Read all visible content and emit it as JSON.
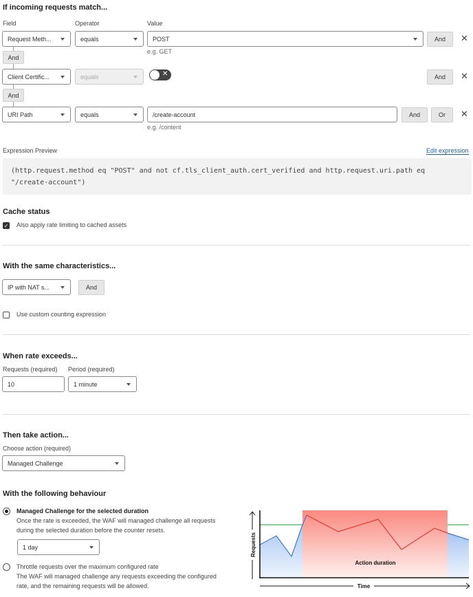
{
  "match": {
    "title": "If incoming requests match...",
    "field_label": "Field",
    "operator_label": "Operator",
    "value_label": "Value",
    "rows": [
      {
        "field": "Request Meth...",
        "operator": "equals",
        "value": "POST",
        "hint": "e.g. GET",
        "and": "And"
      },
      {
        "field": "Client Certific...",
        "operator": "equals",
        "toggle": false,
        "and": "And"
      },
      {
        "field": "URI Path",
        "operator": "equals",
        "value": "/create-account",
        "hint": "e.g. /content",
        "and": "And",
        "or": "Or"
      }
    ],
    "connectors": [
      "And",
      "And"
    ]
  },
  "expression": {
    "label": "Expression Preview",
    "edit": "Edit expression",
    "line1": "(http.request.method eq \"POST\" and not cf.tls_client_auth.cert_verified and http.request.uri.path eq",
    "line2": "\"/create-account\")"
  },
  "cache": {
    "title": "Cache status",
    "checkbox": "Also apply rate limiting to cached assets",
    "checked": true
  },
  "characteristics": {
    "title": "With the same characteristics...",
    "select": "IP with NAT s...",
    "and": "And",
    "custom": "Use custom counting expression",
    "custom_checked": false
  },
  "rate": {
    "title": "When rate exceeds...",
    "requests_label": "Requests (required)",
    "requests": "10",
    "period_label": "Period (required)",
    "period": "1 minute"
  },
  "action": {
    "title": "Then take action...",
    "choose_label": "Choose action (required)",
    "action": "Managed Challenge"
  },
  "behaviour": {
    "title": "With the following behaviour",
    "opt1": {
      "title": "Managed Challenge for the selected duration",
      "desc1": "Once the rate is exceeded, the WAF will managed challenge all requests",
      "desc2": "during the selected duration before the counter resets.",
      "duration": "1 day",
      "selected": true
    },
    "opt2": {
      "title": "Throttle requests over the maximum configured rate",
      "desc1": "The WAF will managed challenge any requests exceeding the configured",
      "desc2": "rate, and the remaining requests will be allowed.",
      "selected": false
    }
  },
  "illustration": {
    "ylabel": "Requests",
    "xlabel": "Time",
    "band": "Action duration",
    "colors": {
      "band": "#f98a80",
      "line_over": "#e8382f",
      "line_under": "#3f78d8",
      "threshold": "#3dbb5f"
    }
  }
}
